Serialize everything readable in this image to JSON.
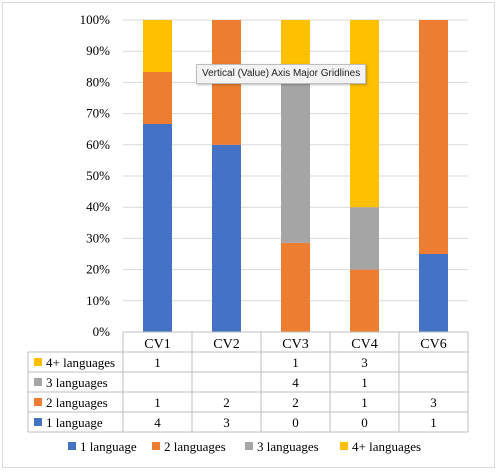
{
  "chart_data": {
    "type": "bar",
    "stacked": "percent",
    "categories": [
      "CV1",
      "CV2",
      "CV3",
      "CV4",
      "CV6"
    ],
    "series": [
      {
        "name": "1 language",
        "color": "#4472C4",
        "values": [
          4,
          3,
          0,
          0,
          1
        ]
      },
      {
        "name": "2 languages",
        "color": "#ED7D31",
        "values": [
          1,
          2,
          2,
          1,
          3
        ]
      },
      {
        "name": "3 languages",
        "color": "#A5A5A5",
        "values": [
          null,
          null,
          4,
          1,
          null
        ]
      },
      {
        "name": "4+ languages",
        "color": "#FFC000",
        "values": [
          1,
          null,
          1,
          3,
          null
        ]
      }
    ],
    "y_ticks": [
      "0%",
      "10%",
      "20%",
      "30%",
      "40%",
      "50%",
      "60%",
      "70%",
      "80%",
      "90%",
      "100%"
    ],
    "ylim": [
      0,
      100
    ],
    "grid": true,
    "legend": "bottom",
    "data_table": true
  },
  "tooltip": {
    "text": "Vertical (Value) Axis Major Gridlines"
  }
}
